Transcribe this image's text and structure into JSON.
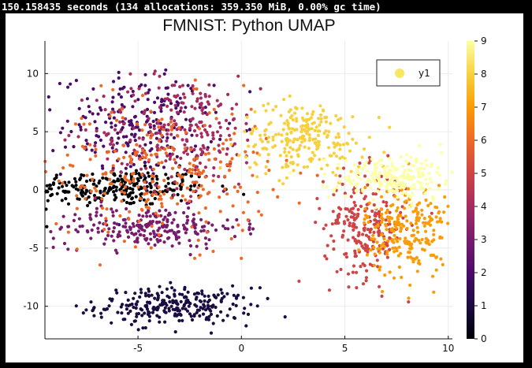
{
  "console": {
    "timing_text": "150.158435 seconds (134 allocations: 359.350 MiB, 0.00% gc time)"
  },
  "chart_data": {
    "type": "scatter",
    "title": "FMNIST: Python UMAP",
    "xlabel": "",
    "ylabel": "",
    "xlim": [
      -9.5,
      10.2
    ],
    "ylim": [
      -12.8,
      12.8
    ],
    "x_ticks": [
      -5,
      0,
      5,
      10
    ],
    "y_ticks": [
      -10,
      -5,
      0,
      5,
      10
    ],
    "grid": true,
    "legend": {
      "entries": [
        "y1"
      ],
      "placement": "top-right"
    },
    "colorbar": {
      "colormap": "inferno",
      "range": [
        0,
        9
      ],
      "ticks": [
        0,
        1,
        2,
        3,
        4,
        5,
        6,
        7,
        8,
        9
      ]
    },
    "colormap_stops": [
      "#000004",
      "#1b0c41",
      "#4a0c6b",
      "#781c6d",
      "#a52c60",
      "#cf4446",
      "#ed6925",
      "#fb9b06",
      "#f7d13d",
      "#fcffa4"
    ],
    "clusters": [
      {
        "label": 0,
        "cx": -6.0,
        "cy": 0.2,
        "sx": 2.2,
        "sy": 0.8,
        "count": 260
      },
      {
        "label": 1,
        "cx": -3.2,
        "cy": -10.0,
        "sx": 1.9,
        "sy": 0.8,
        "count": 260
      },
      {
        "label": 2,
        "cx": -5.0,
        "cy": 5.5,
        "sx": 1.8,
        "sy": 2.2,
        "count": 220
      },
      {
        "label": 3,
        "cx": -4.5,
        "cy": -3.2,
        "sx": 2.2,
        "sy": 0.9,
        "count": 240
      },
      {
        "label": 4,
        "cx": -3.0,
        "cy": 5.0,
        "sx": 2.0,
        "sy": 2.4,
        "count": 260
      },
      {
        "label": 5,
        "cx": 6.0,
        "cy": -3.0,
        "sx": 1.0,
        "sy": 2.3,
        "count": 240
      },
      {
        "label": 6,
        "cx": -3.8,
        "cy": 1.5,
        "sx": 2.6,
        "sy": 3.0,
        "count": 280
      },
      {
        "label": 7,
        "cx": 8.0,
        "cy": -3.5,
        "sx": 1.0,
        "sy": 2.0,
        "count": 240
      },
      {
        "label": 8,
        "cx": 3.0,
        "cy": 4.5,
        "sx": 1.5,
        "sy": 1.5,
        "count": 240
      },
      {
        "label": 9,
        "cx": 7.5,
        "cy": 1.0,
        "sx": 1.6,
        "sy": 1.0,
        "count": 220
      }
    ]
  }
}
